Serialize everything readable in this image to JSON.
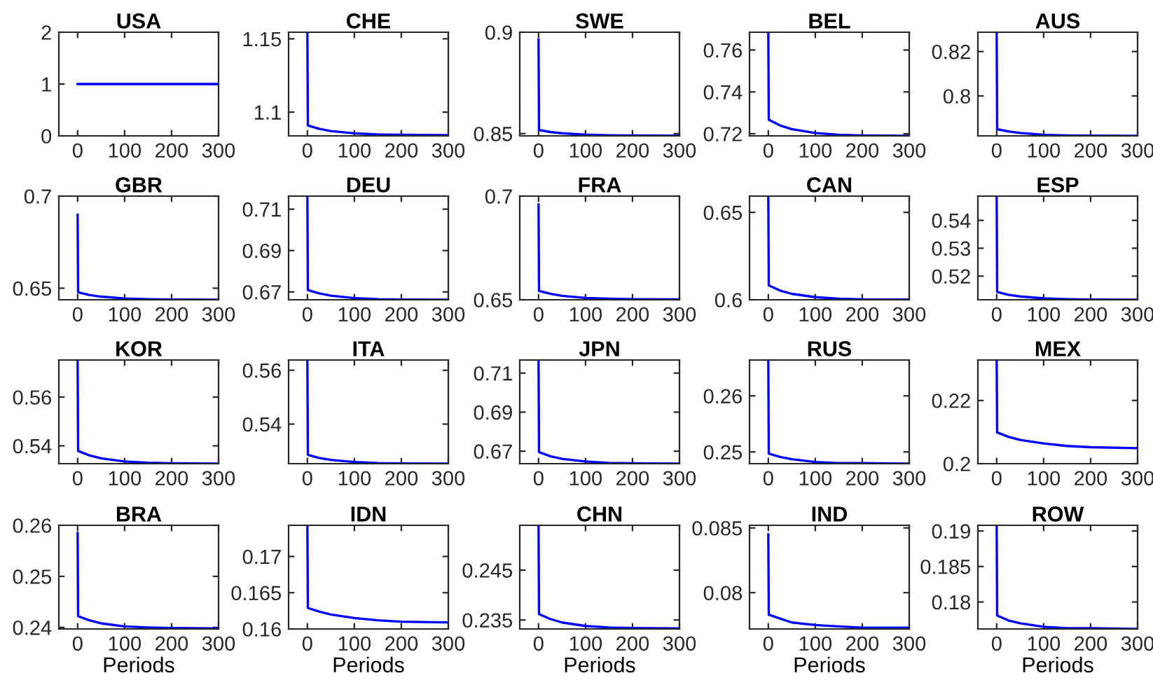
{
  "chart_data": [
    {
      "type": "line",
      "title": "USA",
      "x": [
        0,
        1,
        25,
        50,
        100,
        150,
        200,
        300
      ],
      "series": [
        {
          "color": "#0000ff",
          "values": [
            1,
            1,
            1,
            1,
            1,
            1,
            1,
            1
          ]
        }
      ],
      "xlim": [
        -40,
        300
      ],
      "xticks": [
        0,
        100,
        200,
        300
      ],
      "ylim": [
        0,
        2
      ],
      "yticks": [
        0,
        1,
        2
      ]
    },
    {
      "type": "line",
      "title": "CHE",
      "x": [
        0,
        1,
        25,
        50,
        100,
        150,
        200,
        300
      ],
      "series": [
        {
          "color": "#0000ff",
          "values": [
            1.1545,
            1.0909,
            1.0886,
            1.0871,
            1.0855,
            1.0848,
            1.0845,
            1.0843
          ]
        }
      ],
      "xlim": [
        -40,
        300
      ],
      "xticks": [
        0,
        100,
        200,
        300
      ],
      "ylim": [
        1.0838,
        1.1545
      ],
      "yticks": [
        1.1,
        1.15
      ]
    },
    {
      "type": "line",
      "title": "SWE",
      "x": [
        0,
        1,
        25,
        50,
        100,
        150,
        200,
        300
      ],
      "series": [
        {
          "color": "#0000ff",
          "values": [
            0.8964,
            0.8518,
            0.8508,
            0.8502,
            0.8495,
            0.8492,
            0.8491,
            0.849
          ]
        }
      ],
      "xlim": [
        -40,
        300
      ],
      "xticks": [
        0,
        100,
        200,
        300
      ],
      "ylim": [
        0.8489,
        0.9
      ],
      "yticks": [
        0.85,
        0.9
      ]
    },
    {
      "type": "line",
      "title": "BEL",
      "x": [
        0,
        1,
        25,
        50,
        100,
        150,
        200,
        300
      ],
      "series": [
        {
          "color": "#0000ff",
          "values": [
            0.7685,
            0.7267,
            0.724,
            0.7222,
            0.7204,
            0.7195,
            0.7192,
            0.719
          ]
        }
      ],
      "xlim": [
        -40,
        300
      ],
      "xticks": [
        0,
        100,
        200,
        300
      ],
      "ylim": [
        0.719,
        0.7685
      ],
      "yticks": [
        0.72,
        0.74,
        0.76
      ]
    },
    {
      "type": "line",
      "title": "AUS",
      "x": [
        0,
        1,
        25,
        50,
        100,
        150,
        200,
        300
      ],
      "series": [
        {
          "color": "#0000ff",
          "values": [
            0.8287,
            0.785,
            0.784,
            0.7833,
            0.7825,
            0.7822,
            0.7821,
            0.782
          ]
        }
      ],
      "xlim": [
        -40,
        300
      ],
      "xticks": [
        0,
        100,
        200,
        300
      ],
      "ylim": [
        0.782,
        0.8287
      ],
      "yticks": [
        0.8,
        0.82
      ]
    },
    {
      "type": "line",
      "title": "GBR",
      "x": [
        0,
        1,
        25,
        50,
        100,
        150,
        200,
        300
      ],
      "series": [
        {
          "color": "#0000ff",
          "values": [
            0.6899,
            0.6477,
            0.6463,
            0.6454,
            0.6444,
            0.644,
            0.6438,
            0.6437
          ]
        }
      ],
      "xlim": [
        -40,
        300
      ],
      "xticks": [
        0,
        100,
        200,
        300
      ],
      "ylim": [
        0.6437,
        0.7
      ],
      "yticks": [
        0.65,
        0.7
      ]
    },
    {
      "type": "line",
      "title": "DEU",
      "x": [
        0,
        1,
        25,
        50,
        100,
        150,
        200,
        300
      ],
      "series": [
        {
          "color": "#0000ff",
          "values": [
            0.7163,
            0.6709,
            0.6693,
            0.6682,
            0.667,
            0.6665,
            0.6663,
            0.6662
          ]
        }
      ],
      "xlim": [
        -40,
        300
      ],
      "xticks": [
        0,
        100,
        200,
        300
      ],
      "ylim": [
        0.6662,
        0.7163
      ],
      "yticks": [
        0.67,
        0.69,
        0.71
      ]
    },
    {
      "type": "line",
      "title": "FRA",
      "x": [
        0,
        1,
        25,
        50,
        100,
        150,
        200,
        300
      ],
      "series": [
        {
          "color": "#0000ff",
          "values": [
            0.696,
            0.6543,
            0.6529,
            0.6519,
            0.6509,
            0.6505,
            0.6503,
            0.6502
          ]
        }
      ],
      "xlim": [
        -40,
        300
      ],
      "xticks": [
        0,
        100,
        200,
        300
      ],
      "ylim": [
        0.65,
        0.7
      ],
      "yticks": [
        0.65,
        0.7
      ]
    },
    {
      "type": "line",
      "title": "CAN",
      "x": [
        0,
        1,
        25,
        50,
        100,
        150,
        200,
        300
      ],
      "series": [
        {
          "color": "#0000ff",
          "values": [
            0.6593,
            0.6082,
            0.6053,
            0.6034,
            0.6015,
            0.6006,
            0.6002,
            0.6001
          ]
        }
      ],
      "xlim": [
        -40,
        300
      ],
      "xticks": [
        0,
        100,
        200,
        300
      ],
      "ylim": [
        0.6,
        0.6593
      ],
      "yticks": [
        0.6,
        0.65
      ]
    },
    {
      "type": "line",
      "title": "ESP",
      "x": [
        0,
        1,
        25,
        50,
        100,
        150,
        200,
        300
      ],
      "series": [
        {
          "color": "#0000ff",
          "values": [
            0.5487,
            0.5143,
            0.5133,
            0.5127,
            0.512,
            0.5117,
            0.5116,
            0.5115
          ]
        }
      ],
      "xlim": [
        -40,
        300
      ],
      "xticks": [
        0,
        100,
        200,
        300
      ],
      "ylim": [
        0.5115,
        0.5487
      ],
      "yticks": [
        0.52,
        0.53,
        0.54
      ]
    },
    {
      "type": "line",
      "title": "KOR",
      "x": [
        0,
        1,
        25,
        50,
        100,
        150,
        200,
        300
      ],
      "series": [
        {
          "color": "#0000ff",
          "values": [
            0.5752,
            0.5379,
            0.5361,
            0.5349,
            0.5336,
            0.5331,
            0.5329,
            0.5327
          ]
        }
      ],
      "xlim": [
        -40,
        300
      ],
      "xticks": [
        0,
        100,
        200,
        300
      ],
      "ylim": [
        0.5327,
        0.5752
      ],
      "yticks": [
        0.54,
        0.56
      ]
    },
    {
      "type": "line",
      "title": "ITA",
      "x": [
        0,
        1,
        25,
        50,
        100,
        150,
        200,
        300
      ],
      "series": [
        {
          "color": "#0000ff",
          "values": [
            0.5638,
            0.5286,
            0.5274,
            0.5267,
            0.5259,
            0.5255,
            0.5254,
            0.5253
          ]
        }
      ],
      "xlim": [
        -40,
        300
      ],
      "xticks": [
        0,
        100,
        200,
        300
      ],
      "ylim": [
        0.5253,
        0.5638
      ],
      "yticks": [
        0.54,
        0.56
      ]
    },
    {
      "type": "line",
      "title": "JPN",
      "x": [
        0,
        1,
        25,
        50,
        100,
        150,
        200,
        300
      ],
      "series": [
        {
          "color": "#0000ff",
          "values": [
            0.7167,
            0.6695,
            0.6674,
            0.6661,
            0.6647,
            0.664,
            0.6638,
            0.6636
          ]
        }
      ],
      "xlim": [
        -40,
        300
      ],
      "xticks": [
        0,
        100,
        200,
        300
      ],
      "ylim": [
        0.6636,
        0.7167
      ],
      "yticks": [
        0.67,
        0.69,
        0.71
      ]
    },
    {
      "type": "line",
      "title": "RUS",
      "x": [
        0,
        1,
        25,
        50,
        100,
        150,
        200,
        300
      ],
      "series": [
        {
          "color": "#0000ff",
          "values": [
            0.2664,
            0.2497,
            0.2491,
            0.2487,
            0.2482,
            0.248,
            0.248,
            0.2479
          ]
        }
      ],
      "xlim": [
        -40,
        300
      ],
      "xticks": [
        0,
        100,
        200,
        300
      ],
      "ylim": [
        0.2479,
        0.2664
      ],
      "yticks": [
        0.25,
        0.26
      ]
    },
    {
      "type": "line",
      "title": "MEX",
      "x": [
        0,
        1,
        25,
        50,
        100,
        150,
        200,
        300
      ],
      "series": [
        {
          "color": "#0000ff",
          "values": [
            0.2328,
            0.2099,
            0.2085,
            0.2075,
            0.2064,
            0.2056,
            0.2052,
            0.2049
          ]
        }
      ],
      "xlim": [
        -40,
        300
      ],
      "xticks": [
        0,
        100,
        200,
        300
      ],
      "ylim": [
        0.2,
        0.2328
      ],
      "yticks": [
        0.2,
        0.22
      ]
    },
    {
      "type": "line",
      "title": "BRA",
      "xlabel": "Periods",
      "x": [
        0,
        1,
        25,
        50,
        100,
        150,
        200,
        300
      ],
      "series": [
        {
          "color": "#0000ff",
          "values": [
            0.2585,
            0.2422,
            0.2414,
            0.2408,
            0.2402,
            0.24,
            0.2399,
            0.2398
          ]
        }
      ],
      "xlim": [
        -40,
        300
      ],
      "xticks": [
        0,
        100,
        200,
        300
      ],
      "ylim": [
        0.2397,
        0.26
      ],
      "yticks": [
        0.24,
        0.25,
        0.26
      ]
    },
    {
      "type": "line",
      "title": "IDN",
      "xlabel": "Periods",
      "x": [
        0,
        1,
        25,
        50,
        100,
        150,
        200,
        300
      ],
      "series": [
        {
          "color": "#0000ff",
          "values": [
            0.1743,
            0.1629,
            0.1624,
            0.162,
            0.1615,
            0.1612,
            0.161,
            0.1609
          ]
        }
      ],
      "xlim": [
        -40,
        300
      ],
      "xticks": [
        0,
        100,
        200,
        300
      ],
      "ylim": [
        0.16,
        0.1743
      ],
      "yticks": [
        0.16,
        0.165,
        0.17
      ]
    },
    {
      "type": "line",
      "title": "CHN",
      "xlabel": "Periods",
      "x": [
        0,
        1,
        25,
        50,
        100,
        150,
        200,
        300
      ],
      "series": [
        {
          "color": "#0000ff",
          "values": [
            0.254,
            0.2362,
            0.2352,
            0.2345,
            0.2338,
            0.2335,
            0.2334,
            0.2333
          ]
        }
      ],
      "xlim": [
        -40,
        300
      ],
      "xticks": [
        0,
        100,
        200,
        300
      ],
      "ylim": [
        0.2332,
        0.254
      ],
      "yticks": [
        0.235,
        0.245
      ]
    },
    {
      "type": "line",
      "title": "IND",
      "xlabel": "Periods",
      "x": [
        0,
        1,
        25,
        50,
        100,
        150,
        200,
        300
      ],
      "series": [
        {
          "color": "#0000ff",
          "values": [
            0.0845,
            0.0783,
            0.078,
            0.0777,
            0.0775,
            0.0774,
            0.0773,
            0.0773
          ]
        }
      ],
      "xlim": [
        -40,
        300
      ],
      "xticks": [
        0,
        100,
        200,
        300
      ],
      "ylim": [
        0.0772,
        0.0852
      ],
      "yticks": [
        0.08,
        0.085
      ]
    },
    {
      "type": "line",
      "title": "ROW",
      "xlabel": "Periods",
      "x": [
        0,
        1,
        25,
        50,
        100,
        150,
        200,
        300
      ],
      "series": [
        {
          "color": "#0000ff",
          "values": [
            0.1908,
            0.1781,
            0.1774,
            0.177,
            0.1765,
            0.1763,
            0.1763,
            0.1762
          ]
        }
      ],
      "xlim": [
        -40,
        300
      ],
      "xticks": [
        0,
        100,
        200,
        300
      ],
      "ylim": [
        0.1762,
        0.1908
      ],
      "yticks": [
        0.18,
        0.185,
        0.19
      ]
    }
  ]
}
